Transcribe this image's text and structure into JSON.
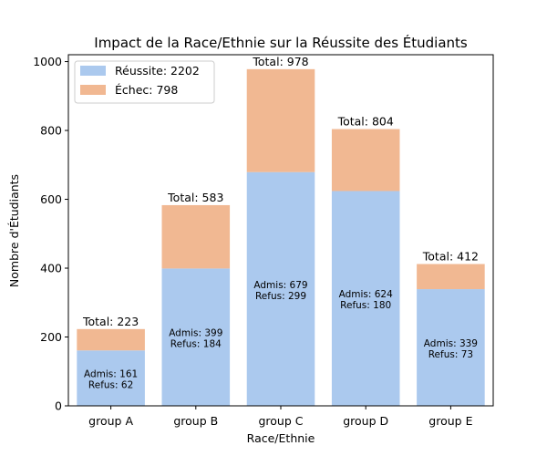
{
  "chart_data": {
    "type": "bar",
    "stacked": true,
    "title": "Impact de la Race/Ethnie sur la Réussite des Étudiants",
    "xlabel": "Race/Ethnie",
    "ylabel": "Nombre d'Étudiants",
    "ylim": [
      0,
      1020
    ],
    "yticks": [
      0,
      200,
      400,
      600,
      800,
      1000
    ],
    "grid": false,
    "legend_position": "top-left",
    "categories": [
      "group A",
      "group B",
      "group C",
      "group D",
      "group E"
    ],
    "series": [
      {
        "name": "Réussite: 2202",
        "color": "#abc9ee",
        "values": [
          161,
          399,
          679,
          624,
          339
        ]
      },
      {
        "name": "Échec: 798",
        "color": "#f1b892",
        "values": [
          62,
          184,
          299,
          180,
          73
        ]
      }
    ],
    "total_labels": [
      "Total: 223",
      "Total: 583",
      "Total: 978",
      "Total: 804",
      "Total: 412"
    ],
    "pass_labels": [
      "Admis: 161",
      "Admis: 399",
      "Admis: 679",
      "Admis: 624",
      "Admis: 339"
    ],
    "fail_labels": [
      "Refus: 62",
      "Refus: 184",
      "Refus: 299",
      "Refus: 180",
      "Refus: 73"
    ]
  }
}
